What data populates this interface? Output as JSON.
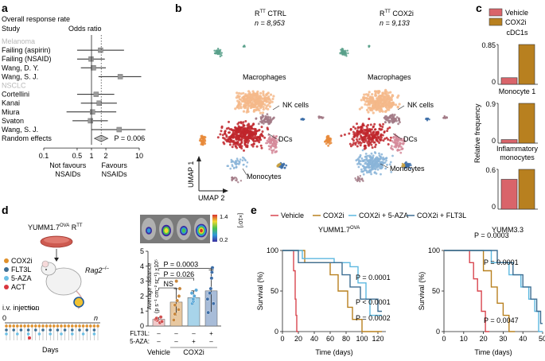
{
  "panel_labels": {
    "a": "a",
    "b": "b",
    "c": "c",
    "d": "d",
    "e": "e"
  },
  "chart_data": [
    {
      "type": "forest",
      "panel": "a",
      "title": "Overall response rate",
      "column_headers": {
        "study": "Study",
        "effect": "Odds ratio"
      },
      "xlabel_left": [
        "Not favours",
        "NSAIDs"
      ],
      "xlabel_right": [
        "Favours",
        "NSAIDs"
      ],
      "xscale": "log",
      "xticks": [
        "0.1",
        "0.5",
        "1",
        "2",
        "10"
      ],
      "reference_line": 1,
      "groups": [
        {
          "name": "Melanoma",
          "studies": [
            {
              "label": "Failing (aspirin)",
              "or": 1.55,
              "ci": [
                0.5,
                4.8
              ]
            },
            {
              "label": "Failing (NSAID)",
              "or": 0.98,
              "ci": [
                0.5,
                1.9
              ]
            },
            {
              "label": "Wang, D. Y.",
              "or": 1.1,
              "ci": [
                0.6,
                2.0
              ]
            },
            {
              "label": "Wang, S. J.",
              "or": 4.0,
              "ci": [
                1.4,
                11.0
              ]
            }
          ]
        },
        {
          "name": "NSCLC",
          "studies": [
            {
              "label": "Cortellini",
              "or": 1.25,
              "ci": [
                0.5,
                3.0
              ]
            },
            {
              "label": "Kanai",
              "or": 1.45,
              "ci": [
                0.6,
                3.4
              ]
            },
            {
              "label": "Miura",
              "or": 1.05,
              "ci": [
                0.3,
                3.3
              ]
            },
            {
              "label": "Svaton",
              "or": 0.95,
              "ci": [
                0.4,
                2.2
              ]
            },
            {
              "label": "Wang, S. J.",
              "or": 3.8,
              "ci": [
                1.0,
                13.5
              ]
            }
          ]
        }
      ],
      "summary": {
        "label": "Random effects",
        "or": 1.6,
        "ci": [
          1.15,
          2.2
        ],
        "p_text": "P = 0.006"
      }
    },
    {
      "type": "scatter",
      "panel": "b",
      "plots": [
        {
          "title": "RTT CTRL",
          "title_main": "R",
          "title_sup": "TT",
          "title_rest": " CTRL",
          "n_label": "n = 8,953"
        },
        {
          "title": "RTT COX2i",
          "title_main": "R",
          "title_sup": "TT",
          "title_rest": " COX2i",
          "n_label": "n = 9,133"
        }
      ],
      "cluster_labels": [
        "Macrophages",
        "NK cells",
        "DCs",
        "Monocytes"
      ],
      "axis_labels": {
        "y": "UMAP 1",
        "x": "UMAP 2"
      },
      "colors": {
        "macrophage": "#f4b98a",
        "red": "#c0262b",
        "pink": "#d58a9a",
        "monocyte": "#8ab4d8",
        "orange": "#e88a3a",
        "teal": "#58a08a",
        "blue": "#3d6ea8",
        "mauve": "#a27a86"
      }
    },
    {
      "type": "bar",
      "panel": "c",
      "legend": [
        "Vehicle",
        "COX2i"
      ],
      "colors": {
        "Vehicle": "#d9646a",
        "COX2i": "#b8801f"
      },
      "ylabel": "Relative frequency",
      "subplots": [
        {
          "title": [
            "cDC1s"
          ],
          "ymax_label": "0.85",
          "ymin_label": "0",
          "ymax": 0.85,
          "values": {
            "Vehicle": 0.14,
            "COX2i": 0.85
          }
        },
        {
          "title": [
            "Monocyte 1"
          ],
          "ymax_label": "0.9",
          "ymin_label": "0",
          "ymax": 0.9,
          "values": {
            "Vehicle": 0.08,
            "COX2i": 0.9
          }
        },
        {
          "title": [
            "Inflammatory",
            "monocytes"
          ],
          "ymax_label": "0.6",
          "ymin_label": "0",
          "ymax": 0.6,
          "values": {
            "Vehicle": 0.45,
            "COX2i": 0.6
          }
        }
      ]
    },
    {
      "type": "bar",
      "panel": "d",
      "ylabel": [
        "Average radiance",
        "(p s⁻¹ cm⁻² sr⁻¹) ×10⁵"
      ],
      "ylim": [
        0,
        5
      ],
      "yticks": [
        "0",
        "1",
        "2",
        "3",
        "4",
        "5"
      ],
      "colorbar": {
        "max": "1.4",
        "min": "0.2",
        "unit": "[×10⁷]"
      },
      "categories": [
        "Vehicle",
        "COX2i",
        "COX2i + 5-AZA",
        "COX2i + FLT3L"
      ],
      "values": [
        0.45,
        1.6,
        1.9,
        2.35
      ],
      "errors": [
        0.12,
        0.9,
        0.45,
        1.4
      ],
      "bar_colors": [
        "#f0c8c8",
        "#e8c8a0",
        "#a8d4ea",
        "#a8bcd8"
      ],
      "point_colors": [
        "#d05050",
        "#c8863a",
        "#5aa8d8",
        "#3d6ea8"
      ],
      "points": [
        [
          0.22,
          0.3,
          0.38,
          0.45,
          0.52,
          0.6
        ],
        [
          0.4,
          0.8,
          1.1,
          1.4,
          1.7,
          2.0,
          2.5,
          3.0
        ],
        [
          1.5,
          1.65,
          1.8,
          2.0,
          2.2,
          2.4
        ],
        [
          0.9,
          1.5,
          1.8,
          2.2,
          2.5,
          3.2,
          3.6,
          3.9
        ]
      ],
      "comparisons": [
        {
          "label": "NS"
        },
        {
          "label": "P = 0.026"
        },
        {
          "label": "P = 0.0003"
        }
      ],
      "table": {
        "rows": [
          {
            "label": "FLT3L:",
            "cells": [
              "–",
              "–",
              "–",
              "+"
            ]
          },
          {
            "label": "5-AZA:",
            "cells": [
              "–",
              "–",
              "+",
              "–"
            ]
          }
        ],
        "groups": [
          "Vehicle",
          "COX2i"
        ]
      }
    },
    {
      "type": "line",
      "panel": "e",
      "legend": [
        {
          "name": "Vehicle",
          "color": "#d9464f"
        },
        {
          "name": "COX2i",
          "color": "#b8801f"
        },
        {
          "name": "COX2i + 5-AZA",
          "color": "#5cb8e0"
        },
        {
          "name": "COX2i + FLT3L",
          "color": "#3d6e93"
        }
      ],
      "plots": [
        {
          "title_main": "YUMM1.7",
          "title_sup": "OVA",
          "xlabel": "Time (days)",
          "ylabel": "Survival (%)",
          "xlim": [
            0,
            130
          ],
          "ylim": [
            0,
            100
          ],
          "xticks": [
            "0",
            "20",
            "40",
            "60",
            "80",
            "100",
            "120"
          ],
          "yticks": [
            "0",
            "50",
            "100"
          ],
          "p_labels": [
            "P = 0.0001",
            "P < 0.0001",
            "P = 0.0002"
          ],
          "series": [
            {
              "name": "Vehicle",
              "steps": [
                [
                  0,
                  100
                ],
                [
                  14,
                  100
                ],
                [
                  14,
                  75
                ],
                [
                  16,
                  75
                ],
                [
                  16,
                  40
                ],
                [
                  17,
                  40
                ],
                [
                  17,
                  20
                ],
                [
                  18,
                  20
                ],
                [
                  18,
                  0
                ],
                [
                  20,
                  0
                ]
              ]
            },
            {
              "name": "COX2i",
              "steps": [
                [
                  0,
                  100
                ],
                [
                  28,
                  100
                ],
                [
                  28,
                  85
                ],
                [
                  60,
                  85
                ],
                [
                  60,
                  70
                ],
                [
                  70,
                  70
                ],
                [
                  70,
                  50
                ],
                [
                  82,
                  50
                ],
                [
                  82,
                  30
                ],
                [
                  88,
                  30
                ],
                [
                  88,
                  15
                ],
                [
                  100,
                  15
                ],
                [
                  100,
                  0
                ],
                [
                  125,
                  0
                ]
              ]
            },
            {
              "name": "COX2i + 5-AZA",
              "steps": [
                [
                  0,
                  100
                ],
                [
                  25,
                  100
                ],
                [
                  25,
                  90
                ],
                [
                  65,
                  90
                ],
                [
                  65,
                  85
                ],
                [
                  85,
                  85
                ],
                [
                  85,
                  80
                ],
                [
                  95,
                  80
                ],
                [
                  95,
                  60
                ],
                [
                  105,
                  60
                ],
                [
                  105,
                  40
                ],
                [
                  110,
                  40
                ],
                [
                  110,
                  20
                ],
                [
                  125,
                  20
                ]
              ]
            },
            {
              "name": "COX2i + FLT3L",
              "steps": [
                [
                  0,
                  100
                ],
                [
                  20,
                  100
                ],
                [
                  20,
                  85
                ],
                [
                  75,
                  85
                ],
                [
                  75,
                  70
                ],
                [
                  85,
                  70
                ],
                [
                  85,
                  55
                ],
                [
                  98,
                  55
                ],
                [
                  98,
                  40
                ],
                [
                  120,
                  40
                ],
                [
                  120,
                  25
                ],
                [
                  125,
                  25
                ]
              ]
            }
          ]
        },
        {
          "title_main": "YUMM3.3",
          "title_sup": "",
          "xlabel": "Time (days)",
          "ylabel": "Survival (%)",
          "xlim": [
            0,
            50
          ],
          "ylim": [
            0,
            100
          ],
          "xticks": [
            "0",
            "10",
            "20",
            "30",
            "40",
            "50"
          ],
          "yticks": [
            "0",
            "50",
            "100"
          ],
          "p_labels": [
            "P = 0.0003",
            "P = 0.0001",
            "P = 0.0047"
          ],
          "series": [
            {
              "name": "Vehicle",
              "steps": [
                [
                  0,
                  100
                ],
                [
                  13,
                  100
                ],
                [
                  13,
                  85
                ],
                [
                  15,
                  85
                ],
                [
                  15,
                  65
                ],
                [
                  17,
                  65
                ],
                [
                  17,
                  50
                ],
                [
                  19,
                  50
                ],
                [
                  19,
                  25
                ],
                [
                  21,
                  25
                ],
                [
                  21,
                  0
                ],
                [
                  23,
                  0
                ]
              ]
            },
            {
              "name": "COX2i",
              "steps": [
                [
                  0,
                  100
                ],
                [
                  20,
                  100
                ],
                [
                  20,
                  75
                ],
                [
                  24,
                  75
                ],
                [
                  24,
                  55
                ],
                [
                  27,
                  55
                ],
                [
                  27,
                  35
                ],
                [
                  30,
                  35
                ],
                [
                  30,
                  20
                ],
                [
                  33,
                  20
                ],
                [
                  33,
                  0
                ],
                [
                  36,
                  0
                ]
              ]
            },
            {
              "name": "COX2i + 5-AZA",
              "steps": [
                [
                  0,
                  100
                ],
                [
                  24,
                  100
                ],
                [
                  24,
                  85
                ],
                [
                  33,
                  85
                ],
                [
                  33,
                  70
                ],
                [
                  39,
                  70
                ],
                [
                  39,
                  55
                ],
                [
                  43,
                  55
                ],
                [
                  43,
                  40
                ],
                [
                  46,
                  40
                ],
                [
                  46,
                  25
                ],
                [
                  48,
                  25
                ],
                [
                  48,
                  0
                ],
                [
                  50,
                  0
                ]
              ]
            },
            {
              "name": "COX2i + FLT3L",
              "steps": [
                [
                  0,
                  100
                ],
                [
                  27,
                  100
                ],
                [
                  27,
                  85
                ],
                [
                  35,
                  85
                ],
                [
                  35,
                  70
                ],
                [
                  40,
                  70
                ],
                [
                  40,
                  55
                ],
                [
                  44,
                  55
                ],
                [
                  44,
                  40
                ],
                [
                  47,
                  40
                ],
                [
                  47,
                  25
                ],
                [
                  49,
                  25
                ],
                [
                  49,
                  10
                ],
                [
                  50,
                  10
                ]
              ]
            }
          ]
        }
      ]
    }
  ],
  "schematic": {
    "mouse_line_main": "YUMM1.7",
    "mouse_line_sup": "OVA",
    "mouse_line_suffix": " R",
    "mouse_line_suffix_sup": "TT",
    "host_main": "Rag2",
    "host_sup": "–/–",
    "treatments": [
      {
        "label": "COX2i",
        "color": "#e0902a"
      },
      {
        "label": "FLT3L",
        "color": "#3d6e93"
      },
      {
        "label": "5-AZA",
        "color": "#6cc0e6"
      },
      {
        "label": "ACT",
        "color": "#d9363e"
      }
    ],
    "injection_label": "i.v. injection",
    "timeline_start": "0",
    "timeline_end": "n",
    "timeline_label": "Days"
  }
}
